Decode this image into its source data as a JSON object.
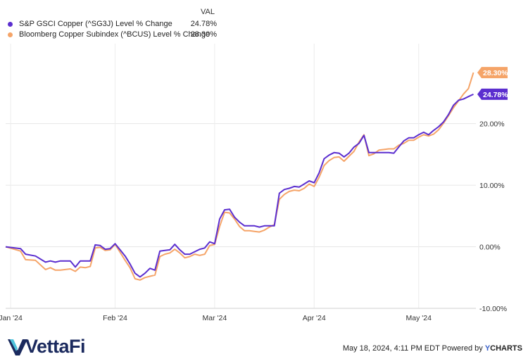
{
  "legend": {
    "header": "VAL",
    "series": [
      {
        "name": "S&P GSCI Copper (^SG3J) Level % Change",
        "value": "24.78%",
        "color": "#5b2ecf"
      },
      {
        "name": "Bloomberg Copper Subindex (^BCUS) Level % Change",
        "value": "28.30%",
        "color": "#f5a468"
      }
    ]
  },
  "footer": {
    "timestamp": "May 18, 2024, 4:11 PM EDT Powered by",
    "ycharts_y": "Y",
    "ycharts_rest": "CHARTS"
  },
  "brand": {
    "logo_text": "VettaFi"
  },
  "chart_data": {
    "type": "line",
    "x_unit": "trading day",
    "x_ticks": [
      {
        "label": "Jan '24",
        "x": 1
      },
      {
        "label": "Feb '24",
        "x": 22
      },
      {
        "label": "Mar '24",
        "x": 42
      },
      {
        "label": "Apr '24",
        "x": 62
      },
      {
        "label": "May '24",
        "x": 83
      }
    ],
    "y_ticks": [
      {
        "label": "20.00%",
        "value": 20
      },
      {
        "label": "10.00%",
        "value": 10
      },
      {
        "label": "0.00%",
        "value": 0
      },
      {
        "label": "-10.00%",
        "value": -10
      }
    ],
    "ylim": [
      -10,
      33
    ],
    "xlim": [
      0,
      94.5
    ],
    "end_labels": [
      {
        "label": "28.30%",
        "value": 28.3,
        "color": "#f5a468"
      },
      {
        "label": "24.78%",
        "value": 24.78,
        "color": "#5b2ecf"
      }
    ],
    "series": [
      {
        "name": "S&P GSCI Copper (^SG3J) Level % Change",
        "color": "#5b2ecf",
        "x": [
          0,
          3,
          4,
          6,
          8,
          9,
          10,
          11,
          13,
          14,
          15,
          16,
          17,
          18,
          19,
          20,
          21,
          22,
          23,
          24,
          25,
          26,
          27,
          28,
          29,
          30,
          31,
          32,
          33,
          34,
          35,
          36,
          37,
          38,
          39,
          40,
          41,
          42,
          43,
          44,
          45,
          46,
          47,
          48,
          49,
          50,
          51,
          52,
          53,
          54,
          55,
          56,
          57,
          58,
          59,
          60,
          61,
          62,
          63,
          64,
          65,
          66,
          67,
          68,
          69,
          70,
          71,
          72,
          73,
          74,
          75,
          76,
          77,
          78,
          79,
          80,
          81,
          82,
          83,
          84,
          85,
          86,
          87,
          88,
          89,
          90,
          91,
          92,
          93,
          94
        ],
        "y": [
          0,
          -0.3,
          -1.2,
          -1.5,
          -2.5,
          -2.3,
          -2.5,
          -2.3,
          -2.3,
          -3.3,
          -2.3,
          -2.3,
          -2.3,
          0.3,
          0.2,
          -0.4,
          -0.3,
          0.5,
          -0.5,
          -1.5,
          -2.8,
          -4.3,
          -4.9,
          -4.3,
          -3.5,
          -3.8,
          -0.7,
          -0.6,
          -0.5,
          0.4,
          -0.5,
          -1.2,
          -1.2,
          -0.8,
          -0.4,
          -0.2,
          0.8,
          0.5,
          4.5,
          6.0,
          6.1,
          4.8,
          4.0,
          3.4,
          3.4,
          3.4,
          3.2,
          3.4,
          3.4,
          3.4,
          8.7,
          9.3,
          9.5,
          9.8,
          9.7,
          10.2,
          10.7,
          10.4,
          12.0,
          14.3,
          14.9,
          15.3,
          15.2,
          14.6,
          15.2,
          16.2,
          16.8,
          18.1,
          15.3,
          15.3,
          15.3,
          15.3,
          15.3,
          15.2,
          16.2,
          17.2,
          17.7,
          17.7,
          18.2,
          18.6,
          18.2,
          18.9,
          19.5,
          20.3,
          21.5,
          23.0,
          23.8,
          24.0,
          24.4,
          24.78
        ]
      },
      {
        "name": "Bloomberg Copper Subindex (^BCUS) Level % Change",
        "color": "#f5a468",
        "x": [
          0,
          3,
          4,
          6,
          8,
          9,
          10,
          11,
          13,
          14,
          15,
          16,
          17,
          18,
          19,
          20,
          21,
          22,
          23,
          24,
          25,
          26,
          27,
          28,
          29,
          30,
          31,
          32,
          33,
          34,
          35,
          36,
          37,
          38,
          39,
          40,
          41,
          42,
          43,
          44,
          45,
          46,
          47,
          48,
          49,
          50,
          51,
          52,
          53,
          54,
          55,
          56,
          57,
          58,
          59,
          60,
          61,
          62,
          63,
          64,
          65,
          66,
          67,
          68,
          69,
          70,
          71,
          72,
          73,
          74,
          75,
          76,
          77,
          78,
          79,
          80,
          81,
          82,
          83,
          84,
          85,
          86,
          87,
          88,
          89,
          90,
          91,
          92,
          93,
          94
        ],
        "y": [
          0,
          -0.7,
          -2.1,
          -2.2,
          -3.7,
          -3.4,
          -3.8,
          -3.8,
          -3.6,
          -4.0,
          -3.3,
          -3.4,
          -3.2,
          -0.2,
          -0.1,
          -0.6,
          -0.5,
          0.4,
          -0.9,
          -2.2,
          -3.4,
          -5.2,
          -5.4,
          -5.0,
          -4.8,
          -4.6,
          -1.6,
          -1.2,
          -1.0,
          -0.4,
          -1.0,
          -1.8,
          -1.6,
          -1.2,
          -1.4,
          -1.2,
          0.2,
          0.4,
          3.3,
          5.6,
          5.5,
          4.5,
          3.3,
          2.6,
          2.6,
          2.5,
          2.4,
          2.7,
          3.2,
          3.6,
          7.7,
          8.5,
          9.0,
          9.2,
          9.1,
          9.5,
          10.2,
          9.8,
          11.3,
          13.2,
          14.0,
          14.5,
          14.6,
          13.9,
          14.7,
          15.5,
          17.0,
          18.2,
          14.8,
          15.1,
          15.7,
          15.8,
          15.9,
          15.9,
          16.5,
          16.8,
          17.3,
          17.3,
          17.8,
          18.2,
          18.0,
          18.3,
          19.0,
          20.1,
          21.3,
          22.6,
          23.7,
          24.8,
          25.7,
          28.3
        ]
      }
    ]
  }
}
